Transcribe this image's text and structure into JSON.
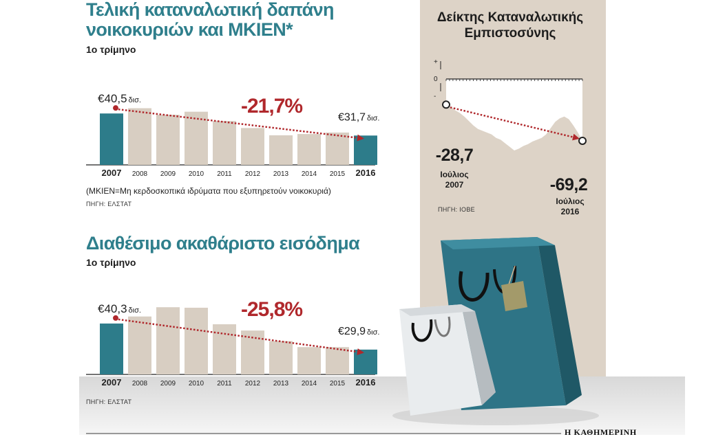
{
  "chart_data": [
    {
      "type": "bar",
      "title": "Τελική καταναλωτική δαπάνη νοικοκυριών και ΜΚΙΕΝ*",
      "subtitle": "1ο τρίμηνο",
      "categories": [
        "2007",
        "2008",
        "2009",
        "2010",
        "2011",
        "2012",
        "2013",
        "2014",
        "2015",
        "2016"
      ],
      "values": [
        40.5,
        42.6,
        40.0,
        41.2,
        37.5,
        34.7,
        31.8,
        32.3,
        32.9,
        31.7
      ],
      "highlight": [
        "2007",
        "2016"
      ],
      "bar_color": "#2d7c8a",
      "muted_color": "#d8cec2",
      "start_label": {
        "value": "€40,5",
        "unit": "δισ."
      },
      "end_label": {
        "value": "€31,7",
        "unit": "δισ."
      },
      "change": "-21,7%",
      "note": "(ΜΚΙΕΝ=Μη κερδοσκοπικά ιδρύματα που εξυπηρετούν νοικοκυριά)",
      "source": "ΠΗΓΗ: ΕΛΣΤΑΤ"
    },
    {
      "type": "bar",
      "title": "Διαθέσιμο ακαθάριστο εισόδημα",
      "subtitle": "1ο τρίμηνο",
      "categories": [
        "2007",
        "2008",
        "2009",
        "2010",
        "2011",
        "2012",
        "2013",
        "2014",
        "2015",
        "2016"
      ],
      "values": [
        40.3,
        43.1,
        46.8,
        46.6,
        40.0,
        37.5,
        33.3,
        30.9,
        30.9,
        29.9
      ],
      "highlight": [
        "2007",
        "2016"
      ],
      "bar_color": "#2d7c8a",
      "muted_color": "#d8cec2",
      "start_label": {
        "value": "€40,3",
        "unit": "δισ."
      },
      "end_label": {
        "value": "€29,9",
        "unit": "δισ."
      },
      "change": "-25,8%",
      "source": "ΠΗΓΗ: ΕΛΣΤΑΤ"
    },
    {
      "type": "line",
      "title": "Δείκτης Καταναλωτικής Εμπιστοσύνης",
      "y_tick_labels": [
        "+",
        "0",
        "-"
      ],
      "values": [
        -28.7,
        -31,
        -35,
        -38,
        -42,
        -47,
        -52,
        -56,
        -58,
        -60,
        -62,
        -66,
        -68,
        -72,
        -76,
        -80,
        -78,
        -75,
        -73,
        -70,
        -68,
        -66,
        -62,
        -55,
        -48,
        -44,
        -42,
        -45,
        -52,
        -60,
        -69.2
      ],
      "start": {
        "value": "-28,7",
        "label": "Ιούλιος 2007"
      },
      "end": {
        "value": "-69,2",
        "label": "Ιούλιος 2016"
      },
      "source": "ΠΗΓΗ: ΙΟΒΕ"
    }
  ],
  "footer": {
    "logo": "Η ΚΑΘΗΜΕΡΙΝΗ"
  },
  "colors": {
    "accent": "#2f7f8c",
    "arrow": "#b0282c",
    "panel": "#ddd3c7"
  }
}
